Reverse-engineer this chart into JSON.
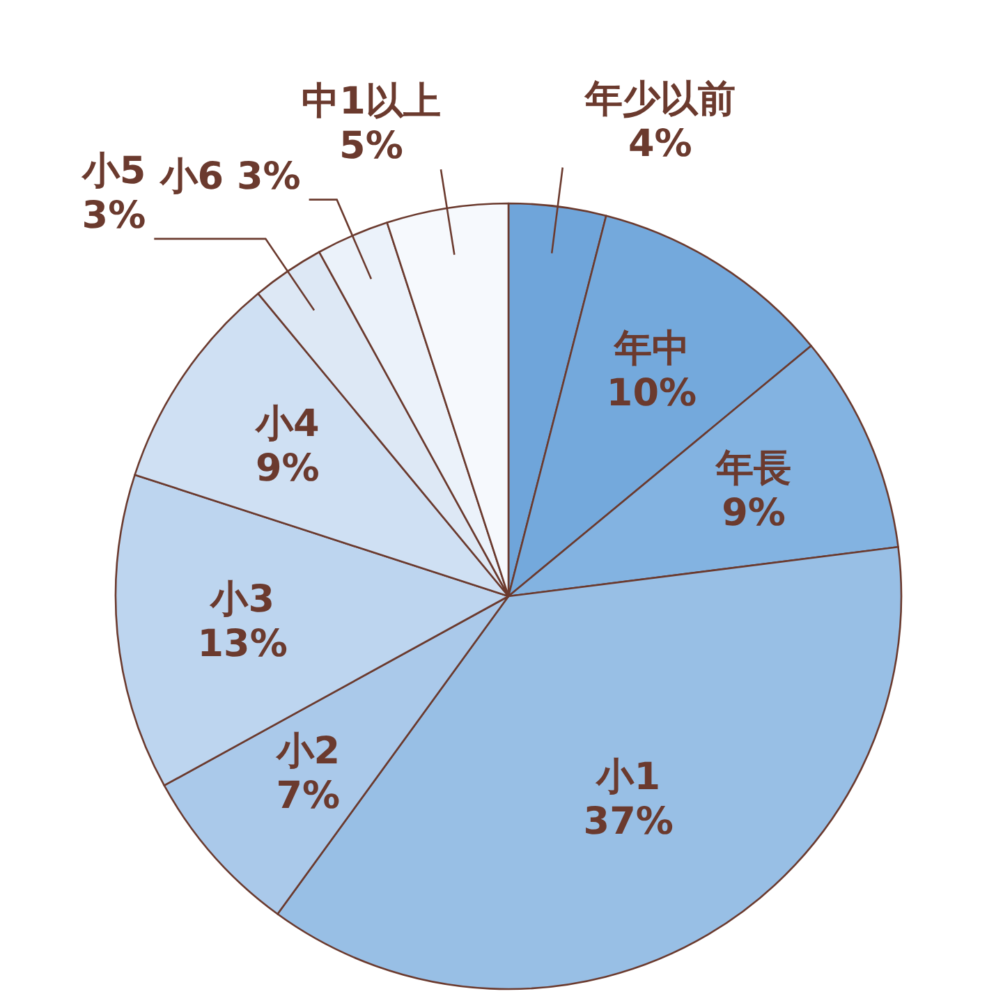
{
  "chart_data": {
    "type": "pie",
    "categories": [
      "年少以前",
      "年中",
      "年長",
      "小1",
      "小2",
      "小3",
      "小4",
      "小5",
      "小6",
      "中1以上"
    ],
    "values": [
      4,
      10,
      9,
      37,
      7,
      13,
      9,
      3,
      3,
      5
    ],
    "value_labels": [
      "4%",
      "10%",
      "9%",
      "37%",
      "7%",
      "13%",
      "9%",
      "3%",
      "3%",
      "5%"
    ],
    "colors": [
      "#6fa5da",
      "#74a9dc",
      "#83b3e1",
      "#98bfe5",
      "#aac9ea",
      "#bdd5ef",
      "#cfe0f3",
      "#dde8f5",
      "#ebf2fa",
      "#f6f9fd"
    ]
  }
}
